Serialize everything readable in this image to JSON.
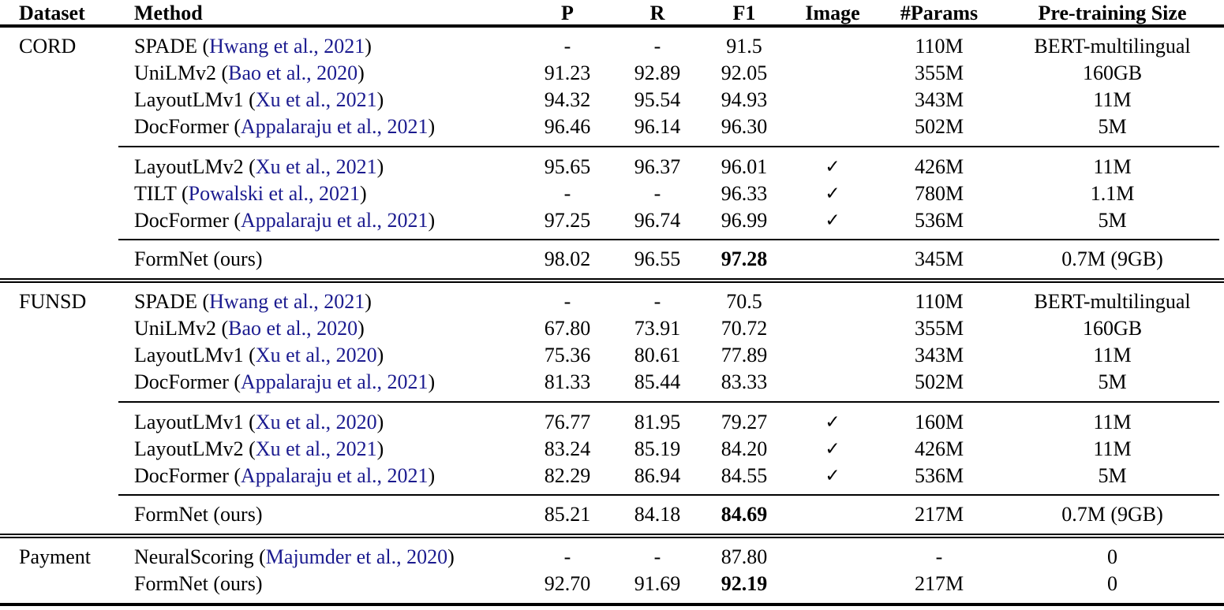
{
  "table": {
    "check_glyph": "✓",
    "link_color": "#1b1b8f",
    "columns": [
      {
        "label": "Dataset"
      },
      {
        "label": "Method"
      },
      {
        "label": "P"
      },
      {
        "label": "R"
      },
      {
        "label": "F1"
      },
      {
        "label": "Image"
      },
      {
        "label": "#Params"
      },
      {
        "label": "Pre-training Size"
      }
    ],
    "sections": [
      {
        "dataset": "CORD",
        "groups": [
          {
            "rows": [
              {
                "method_prefix": "SPADE (",
                "citation": "Hwang et al., 2021",
                "method_suffix": ")",
                "p": "-",
                "r": "-",
                "f1": "91.5",
                "f1_bold": false,
                "image": false,
                "params": "110M",
                "pretrain": "BERT-multilingual"
              },
              {
                "method_prefix": "UniLMv2 (",
                "citation": "Bao et al., 2020",
                "method_suffix": ")",
                "p": "91.23",
                "r": "92.89",
                "f1": "92.05",
                "f1_bold": false,
                "image": false,
                "params": "355M",
                "pretrain": "160GB"
              },
              {
                "method_prefix": "LayoutLMv1 (",
                "citation": "Xu et al., 2021",
                "method_suffix": ")",
                "p": "94.32",
                "r": "95.54",
                "f1": "94.93",
                "f1_bold": false,
                "image": false,
                "params": "343M",
                "pretrain": "11M"
              },
              {
                "method_prefix": "DocFormer (",
                "citation": "Appalaraju et al., 2021",
                "method_suffix": ")",
                "p": "96.46",
                "r": "96.14",
                "f1": "96.30",
                "f1_bold": false,
                "image": false,
                "params": "502M",
                "pretrain": "5M"
              }
            ]
          },
          {
            "rows": [
              {
                "method_prefix": "LayoutLMv2 (",
                "citation": "Xu et al., 2021",
                "method_suffix": ")",
                "p": "95.65",
                "r": "96.37",
                "f1": "96.01",
                "f1_bold": false,
                "image": true,
                "params": "426M",
                "pretrain": "11M"
              },
              {
                "method_prefix": "TILT (",
                "citation": "Powalski et al., 2021",
                "method_suffix": ")",
                "p": "-",
                "r": "-",
                "f1": "96.33",
                "f1_bold": false,
                "image": true,
                "params": "780M",
                "pretrain": "1.1M"
              },
              {
                "method_prefix": "DocFormer (",
                "citation": "Appalaraju et al., 2021",
                "method_suffix": ")",
                "p": "97.25",
                "r": "96.74",
                "f1": "96.99",
                "f1_bold": false,
                "image": true,
                "params": "536M",
                "pretrain": "5M"
              }
            ]
          },
          {
            "rows": [
              {
                "method_prefix": "FormNet (ours)",
                "citation": "",
                "method_suffix": "",
                "p": "98.02",
                "r": "96.55",
                "f1": "97.28",
                "f1_bold": true,
                "image": false,
                "params": "345M",
                "pretrain": "0.7M (9GB)"
              }
            ]
          }
        ]
      },
      {
        "dataset": "FUNSD",
        "groups": [
          {
            "rows": [
              {
                "method_prefix": "SPADE (",
                "citation": "Hwang et al., 2021",
                "method_suffix": ")",
                "p": "-",
                "r": "-",
                "f1": "70.5",
                "f1_bold": false,
                "image": false,
                "params": "110M",
                "pretrain": "BERT-multilingual"
              },
              {
                "method_prefix": "UniLMv2 (",
                "citation": "Bao et al., 2020",
                "method_suffix": ")",
                "p": "67.80",
                "r": "73.91",
                "f1": "70.72",
                "f1_bold": false,
                "image": false,
                "params": "355M",
                "pretrain": "160GB"
              },
              {
                "method_prefix": "LayoutLMv1 (",
                "citation": "Xu et al., 2020",
                "method_suffix": ")",
                "p": "75.36",
                "r": "80.61",
                "f1": "77.89",
                "f1_bold": false,
                "image": false,
                "params": "343M",
                "pretrain": "11M"
              },
              {
                "method_prefix": "DocFormer (",
                "citation": "Appalaraju et al., 2021",
                "method_suffix": ")",
                "p": "81.33",
                "r": "85.44",
                "f1": "83.33",
                "f1_bold": false,
                "image": false,
                "params": "502M",
                "pretrain": "5M"
              }
            ]
          },
          {
            "rows": [
              {
                "method_prefix": "LayoutLMv1 (",
                "citation": "Xu et al., 2020",
                "method_suffix": ")",
                "p": "76.77",
                "r": "81.95",
                "f1": "79.27",
                "f1_bold": false,
                "image": true,
                "params": "160M",
                "pretrain": "11M"
              },
              {
                "method_prefix": "LayoutLMv2 (",
                "citation": "Xu et al., 2021",
                "method_suffix": ")",
                "p": "83.24",
                "r": "85.19",
                "f1": "84.20",
                "f1_bold": false,
                "image": true,
                "params": "426M",
                "pretrain": "11M"
              },
              {
                "method_prefix": "DocFormer (",
                "citation": "Appalaraju et al., 2021",
                "method_suffix": ")",
                "p": "82.29",
                "r": "86.94",
                "f1": "84.55",
                "f1_bold": false,
                "image": true,
                "params": "536M",
                "pretrain": "5M"
              }
            ]
          },
          {
            "rows": [
              {
                "method_prefix": "FormNet (ours)",
                "citation": "",
                "method_suffix": "",
                "p": "85.21",
                "r": "84.18",
                "f1": "84.69",
                "f1_bold": true,
                "image": false,
                "params": "217M",
                "pretrain": "0.7M (9GB)"
              }
            ]
          }
        ]
      },
      {
        "dataset": "Payment",
        "groups": [
          {
            "rows": [
              {
                "method_prefix": "NeuralScoring (",
                "citation": "Majumder et al., 2020",
                "method_suffix": ")",
                "p": "-",
                "r": "-",
                "f1": "87.80",
                "f1_bold": false,
                "image": false,
                "params": "-",
                "pretrain": "0"
              },
              {
                "method_prefix": "FormNet (ours)",
                "citation": "",
                "method_suffix": "",
                "p": "92.70",
                "r": "91.69",
                "f1": "92.19",
                "f1_bold": true,
                "image": false,
                "params": "217M",
                "pretrain": "0"
              }
            ]
          }
        ]
      }
    ]
  }
}
